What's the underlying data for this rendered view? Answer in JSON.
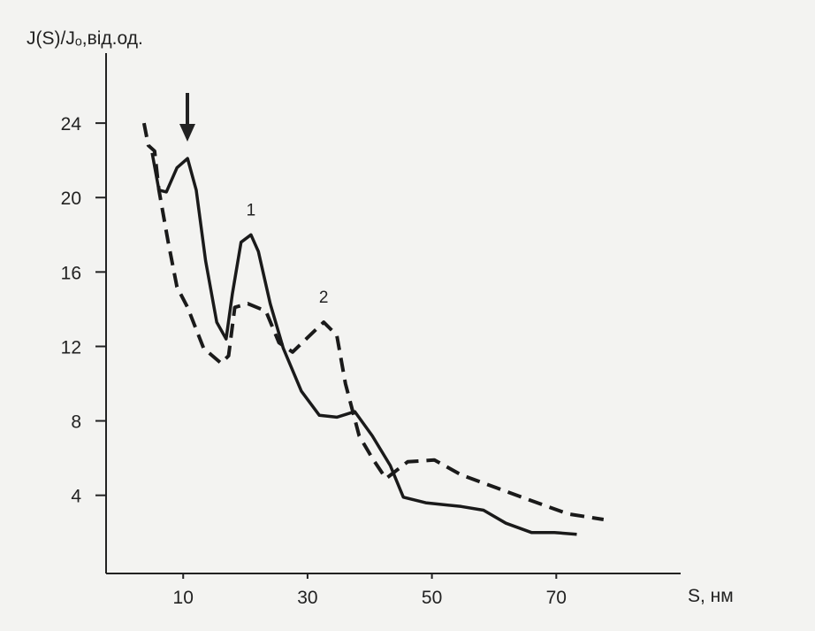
{
  "chart_data": {
    "type": "line",
    "y_label": "J(S)/Jₒ,від.од.",
    "x_label": "S, нм",
    "xlim": [
      -2.4,
      90
    ],
    "ylim": [
      -0.2,
      28
    ],
    "xticks": [
      10,
      30,
      50,
      70
    ],
    "yticks": [
      4,
      8,
      12,
      16,
      20,
      24
    ],
    "series": [
      {
        "name": "1",
        "color": "#1a1a1a",
        "style": "solid",
        "x": [
          5,
          6.1,
          7.3,
          9,
          10.7,
          12.1,
          13.6,
          15.4,
          16.9,
          17.9,
          19.3,
          20.9,
          22.1,
          24,
          26.1,
          29,
          31.9,
          34.7,
          37.6,
          40.4,
          43.3,
          45.4,
          49,
          54.7,
          58.3,
          61.9,
          66,
          69.7,
          73.3
        ],
        "values": [
          22.4,
          20.4,
          20.3,
          21.6,
          22.1,
          20.4,
          16.6,
          13.3,
          12.4,
          14.8,
          17.6,
          18,
          17.1,
          14.3,
          11.9,
          9.6,
          8.3,
          8.2,
          8.5,
          7.2,
          5.6,
          3.9,
          3.6,
          3.4,
          3.2,
          2.5,
          2,
          2,
          1.9
        ]
      },
      {
        "name": "2",
        "color": "#1a1a1a",
        "style": "dashed",
        "x": [
          3.7,
          4.4,
          5.4,
          6.1,
          7.6,
          9,
          10.7,
          13.3,
          16.1,
          17.3,
          18.3,
          20.4,
          23.3,
          25.4,
          27.6,
          30.4,
          32.6,
          34.7,
          36.1,
          38.3,
          40.4,
          42.6,
          46.1,
          50.4,
          54.7,
          60.4,
          66.1,
          71.9,
          77.6
        ],
        "values": [
          24,
          22.8,
          22.5,
          20.4,
          17.6,
          15.2,
          14.1,
          11.9,
          11.1,
          11.5,
          14.1,
          14.3,
          13.9,
          12.2,
          11.7,
          12.6,
          13.3,
          12.6,
          10,
          7.2,
          6,
          4.9,
          5.8,
          5.9,
          5.1,
          4.4,
          3.7,
          3,
          2.7
        ]
      }
    ]
  }
}
